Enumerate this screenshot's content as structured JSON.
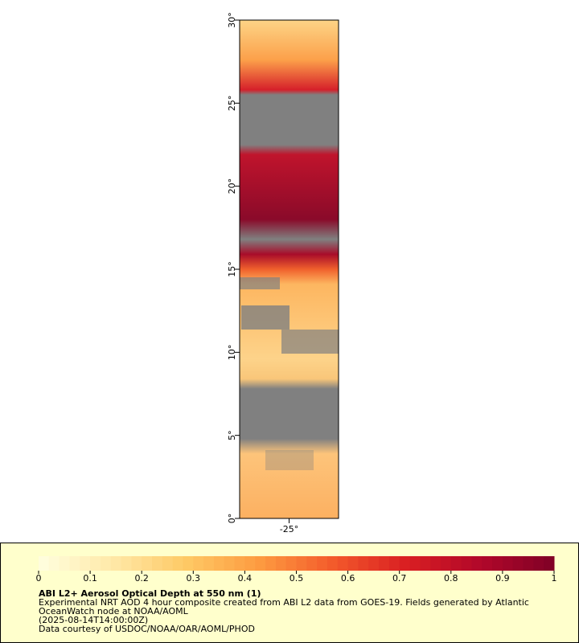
{
  "map": {
    "latlim": [
      0,
      30
    ],
    "lat_ticks": [
      {
        "value": 0,
        "label": "0°"
      },
      {
        "value": 5,
        "label": "5°"
      },
      {
        "value": 10,
        "label": "10°"
      },
      {
        "value": 15,
        "label": "15°"
      },
      {
        "value": 20,
        "label": "20°"
      },
      {
        "value": 25,
        "label": "25°"
      },
      {
        "value": 30,
        "label": "30°"
      }
    ],
    "lonlim": [
      -28,
      -22
    ],
    "lon_ticks": [
      {
        "value": -25,
        "label": "-25°"
      }
    ]
  },
  "legend": {
    "colorbar": {
      "range": [
        0,
        1
      ],
      "ticks": [
        0,
        0.1,
        0.2,
        0.3,
        0.4,
        0.5,
        0.6,
        0.7,
        0.8,
        0.9,
        1
      ],
      "colors": [
        "#ffffe0",
        "#ffe9a8",
        "#fec965",
        "#fd9b40",
        "#f35a2b",
        "#d91e22",
        "#b1082a",
        "#800026"
      ]
    },
    "title": "ABI L2+ Aerosol Optical Depth at 550 nm (1)",
    "lines": [
      "Experimental NRT AOD 4 hour composite created from ABI L2 data from GOES-19. Fields generated by Atlantic",
      "OceanWatch node at NOAA/AOML",
      "(2025-08-14T14:00:00Z)",
      "Data courtesy of USDOC/NOAA/OAR/AOML/PHOD"
    ]
  }
}
